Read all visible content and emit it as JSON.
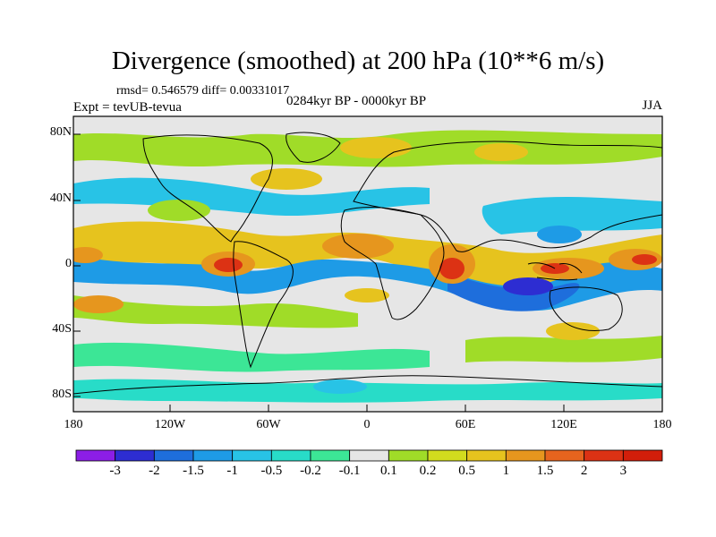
{
  "title": "Divergence (smoothed) at 200 hPa (10**6 m/s)",
  "stats": "rmsd= 0.546579 diff= 0.00331017",
  "experiment": "Expt = tevUB-tevua",
  "period": "0284kyr BP - 0000kyr BP",
  "season": "JJA",
  "lat_labels": [
    "80N",
    "40N",
    "0",
    "40S",
    "80S"
  ],
  "lon_labels": [
    "180",
    "120W",
    "60W",
    "0",
    "60E",
    "120E",
    "180"
  ],
  "colorbar": {
    "labels": [
      "-3",
      "-2",
      "-1.5",
      "-1",
      "-0.5",
      "-0.2",
      "-0.1",
      "0.1",
      "0.2",
      "0.5",
      "1",
      "1.5",
      "2",
      "3"
    ],
    "colors": [
      "#8c1ee6",
      "#2d2dd2",
      "#1e6edc",
      "#1e9be6",
      "#28c3e6",
      "#28dcc8",
      "#3ce696",
      "#e6e6e6",
      "#a0dc28",
      "#d2dc1e",
      "#e6c31e",
      "#e6961e",
      "#e6641e",
      "#dc3214",
      "#d21e0a"
    ]
  },
  "colors": {
    "background": "#ffffff",
    "no_signal": "#e6e6e6",
    "coast": "#000000"
  }
}
